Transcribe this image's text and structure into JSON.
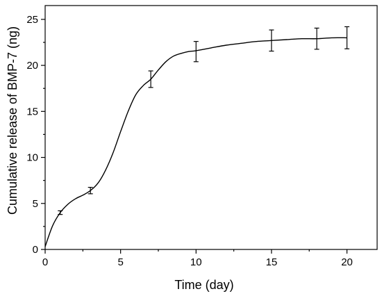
{
  "chart_data": {
    "type": "line",
    "xlabel": "Time (day)",
    "ylabel": "Cumulative release of BMP-7 (ng)",
    "xlim": [
      0,
      22
    ],
    "ylim": [
      0,
      26.5
    ],
    "x_ticks": [
      0,
      5,
      10,
      15,
      20
    ],
    "y_ticks": [
      0,
      5,
      10,
      15,
      20,
      25
    ],
    "grid": false,
    "series": [
      {
        "x": [
          1,
          3,
          7,
          10,
          15,
          18,
          20
        ],
        "y": [
          4.0,
          6.4,
          18.5,
          21.5,
          22.7,
          22.9,
          23.0
        ],
        "err": [
          0.2,
          0.35,
          0.9,
          1.1,
          1.15,
          1.15,
          1.2
        ]
      }
    ],
    "curve": {
      "x": [
        0,
        0.5,
        1,
        1.5,
        2,
        2.5,
        3,
        3.5,
        4,
        4.5,
        5,
        5.5,
        6,
        6.5,
        7,
        7.5,
        8,
        8.5,
        9,
        9.5,
        10,
        11,
        12,
        13,
        14,
        15,
        16,
        17,
        18,
        19,
        20
      ],
      "y": [
        0.3,
        2.6,
        4.0,
        4.9,
        5.5,
        5.9,
        6.4,
        7.2,
        8.6,
        10.5,
        12.8,
        15.0,
        16.8,
        17.8,
        18.5,
        19.5,
        20.4,
        21.0,
        21.3,
        21.5,
        21.6,
        21.9,
        22.2,
        22.4,
        22.6,
        22.7,
        22.8,
        22.9,
        22.9,
        23.0,
        23.0
      ]
    }
  }
}
